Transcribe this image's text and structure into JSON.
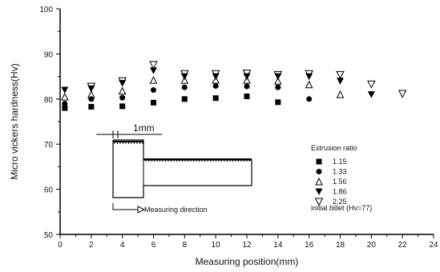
{
  "chart_data": {
    "type": "scatter",
    "xlabel": "Measuring position(mm)",
    "ylabel": "Micro vickers hardness(Hv)",
    "xlim": [
      0,
      24
    ],
    "ylim": [
      50,
      100
    ],
    "xticks": [
      "0",
      "2",
      "4",
      "6",
      "8",
      "10",
      "12",
      "14",
      "16",
      "18",
      "20",
      "22",
      "24"
    ],
    "yticks": [
      "50",
      "60",
      "70",
      "80",
      "90",
      "100"
    ],
    "grid": false,
    "legend": {
      "title": "Extrusion ratio",
      "placement": "right-center",
      "note": "initial billet (Hv=77)"
    },
    "series": [
      {
        "name": "1.15",
        "marker": "square",
        "points": [
          [
            0.3,
            78.0
          ],
          [
            2,
            78.3
          ],
          [
            4,
            78.4
          ],
          [
            6,
            79.2
          ],
          [
            8,
            80.0
          ],
          [
            10,
            80.2
          ],
          [
            12,
            80.6
          ],
          [
            14,
            79.3
          ]
        ]
      },
      {
        "name": "1.33",
        "marker": "circle",
        "points": [
          [
            0.3,
            79.0
          ],
          [
            2,
            80.0
          ],
          [
            4,
            80.3
          ],
          [
            6,
            82.0
          ],
          [
            8,
            82.6
          ],
          [
            10,
            82.9
          ],
          [
            12,
            82.8
          ],
          [
            14,
            82.6
          ],
          [
            16,
            80.0
          ]
        ]
      },
      {
        "name": "1.56",
        "marker": "triangle-up-open",
        "points": [
          [
            0.3,
            80.5
          ],
          [
            2,
            81.0
          ],
          [
            4,
            81.8
          ],
          [
            6,
            84.2
          ],
          [
            8,
            84.2
          ],
          [
            10,
            84.2
          ],
          [
            12,
            84.2
          ],
          [
            14,
            84.0
          ],
          [
            16,
            83.2
          ],
          [
            18,
            81.0
          ]
        ]
      },
      {
        "name": "1.86",
        "marker": "triangle-down",
        "points": [
          [
            0.3,
            82.0
          ],
          [
            2,
            82.3
          ],
          [
            4,
            83.5
          ],
          [
            6,
            86.3
          ],
          [
            8,
            85.0
          ],
          [
            10,
            85.0
          ],
          [
            12,
            85.0
          ],
          [
            14,
            85.0
          ],
          [
            16,
            85.0
          ],
          [
            18,
            84.0
          ],
          [
            20,
            81.0
          ]
        ]
      },
      {
        "name": "2.25",
        "marker": "triangle-down-open",
        "points": [
          [
            2,
            82.8
          ],
          [
            4,
            84.0
          ],
          [
            6,
            87.6
          ],
          [
            8,
            85.6
          ],
          [
            10,
            85.6
          ],
          [
            12,
            85.7
          ],
          [
            14,
            85.4
          ],
          [
            16,
            85.6
          ],
          [
            18,
            85.4
          ],
          [
            20,
            83.3
          ],
          [
            22,
            81.2
          ]
        ]
      }
    ]
  },
  "inset": {
    "dimension_label": "1mm",
    "direction_label": "Measuring direction"
  }
}
